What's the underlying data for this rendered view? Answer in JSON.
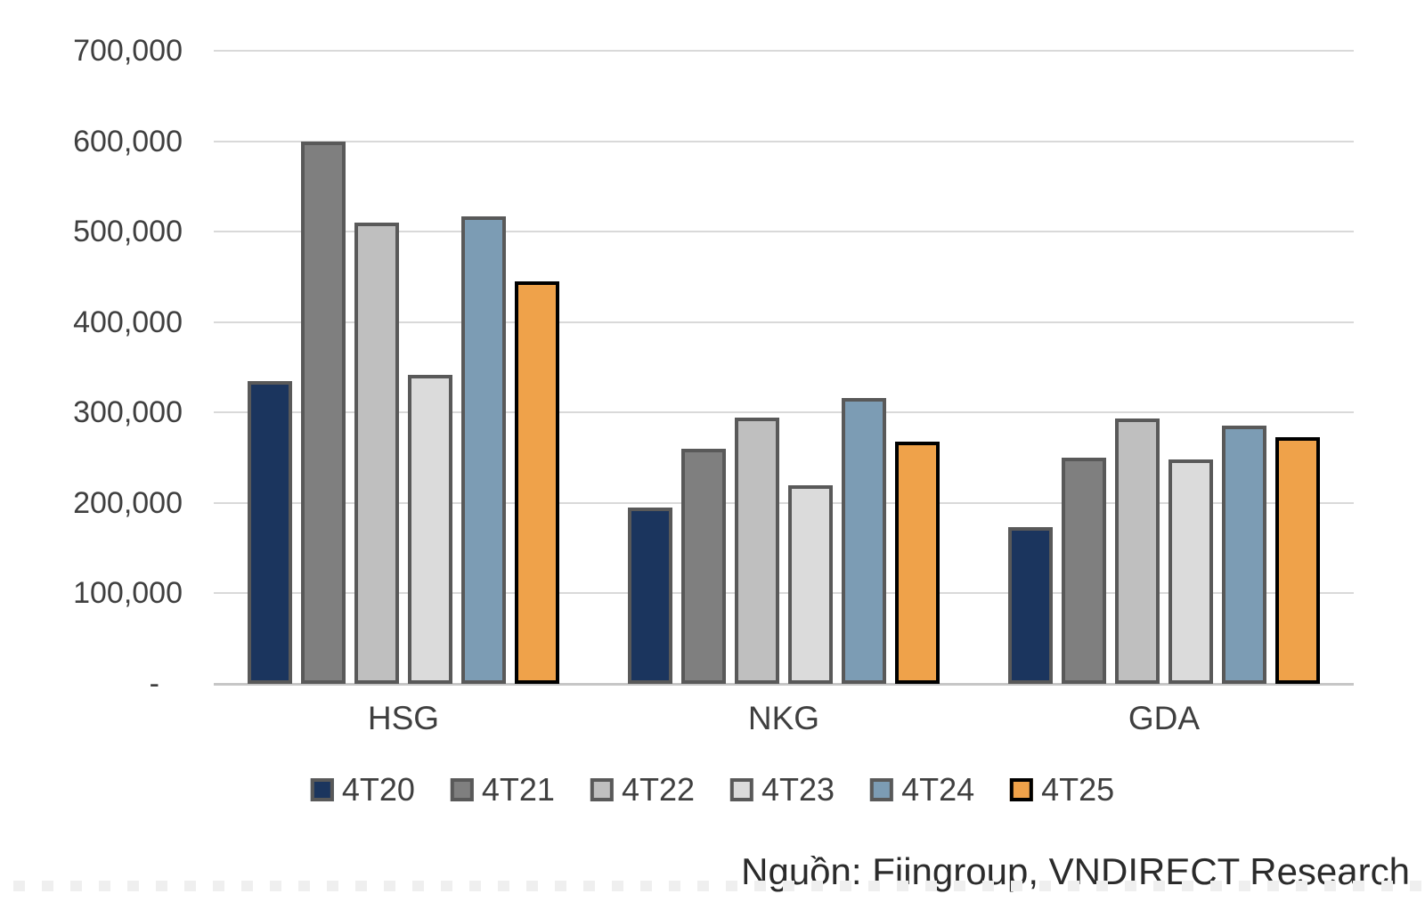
{
  "chart_data": {
    "type": "bar",
    "title": "",
    "xlabel": "",
    "ylabel": "",
    "categories": [
      "HSG",
      "NKG",
      "GDA"
    ],
    "series": [
      {
        "name": "4T20",
        "color": "#1B355E",
        "border": "#595959",
        "values": [
          335000,
          195000,
          173000
        ]
      },
      {
        "name": "4T21",
        "color": "#7F7F7F",
        "border": "#595959",
        "values": [
          600000,
          260000,
          250000
        ]
      },
      {
        "name": "4T22",
        "color": "#BFBFBF",
        "border": "#595959",
        "values": [
          510000,
          294000,
          293000
        ]
      },
      {
        "name": "4T23",
        "color": "#DBDBDB",
        "border": "#595959",
        "values": [
          342000,
          220000,
          248000
        ]
      },
      {
        "name": "4T24",
        "color": "#7C9CB4",
        "border": "#595959",
        "values": [
          517000,
          316000,
          286000
        ]
      },
      {
        "name": "4T25",
        "color": "#EFA24A",
        "border": "#000000",
        "values": [
          445000,
          268000,
          273000
        ]
      }
    ],
    "ylim": [
      0,
      700000
    ],
    "ytick_step": 100000,
    "ytick_labels": [
      "700,000",
      "600,000",
      "500,000",
      "400,000",
      "300,000",
      "200,000",
      "100,000",
      "-"
    ],
    "grid": true,
    "legend_position": "bottom",
    "source": "Nguồn: Fiingroup, VNDIRECT Research"
  },
  "style": {
    "gridline_color": "#d9d9d9",
    "baseline_color": "#c6c6c6",
    "text_color": "#3f3f3f"
  }
}
